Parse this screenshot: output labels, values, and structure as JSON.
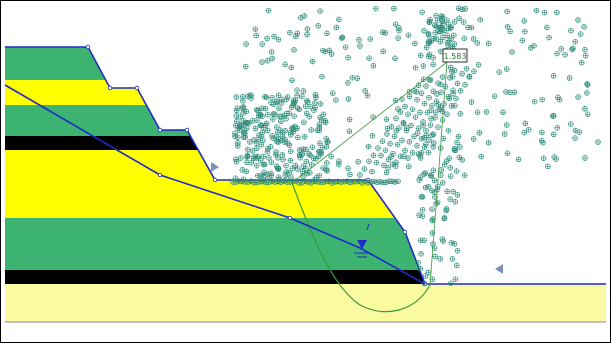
{
  "app": {
    "view": "slope-stability-model"
  },
  "colors": {
    "green_layer": "#3cb371",
    "yellow_layer": "#ffff00",
    "black_layer": "#000000",
    "foundation": "#fafaa0",
    "boundary": "#1e2bc8",
    "water_table": "#1e2bc8",
    "slip_surface": "#3a9a3a",
    "grid_marker": "#2e8b7a",
    "limit_marker": "#7f93b8",
    "background": "#ffffff",
    "frame": "#000000"
  },
  "icons": {
    "grid_marker": "crosshair-circle-icon",
    "water_marker": "water-table-triangle-icon",
    "slip_limit_marker": "slip-limit-triangle-icon"
  },
  "result": {
    "factor_of_safety": "1.583"
  }
}
